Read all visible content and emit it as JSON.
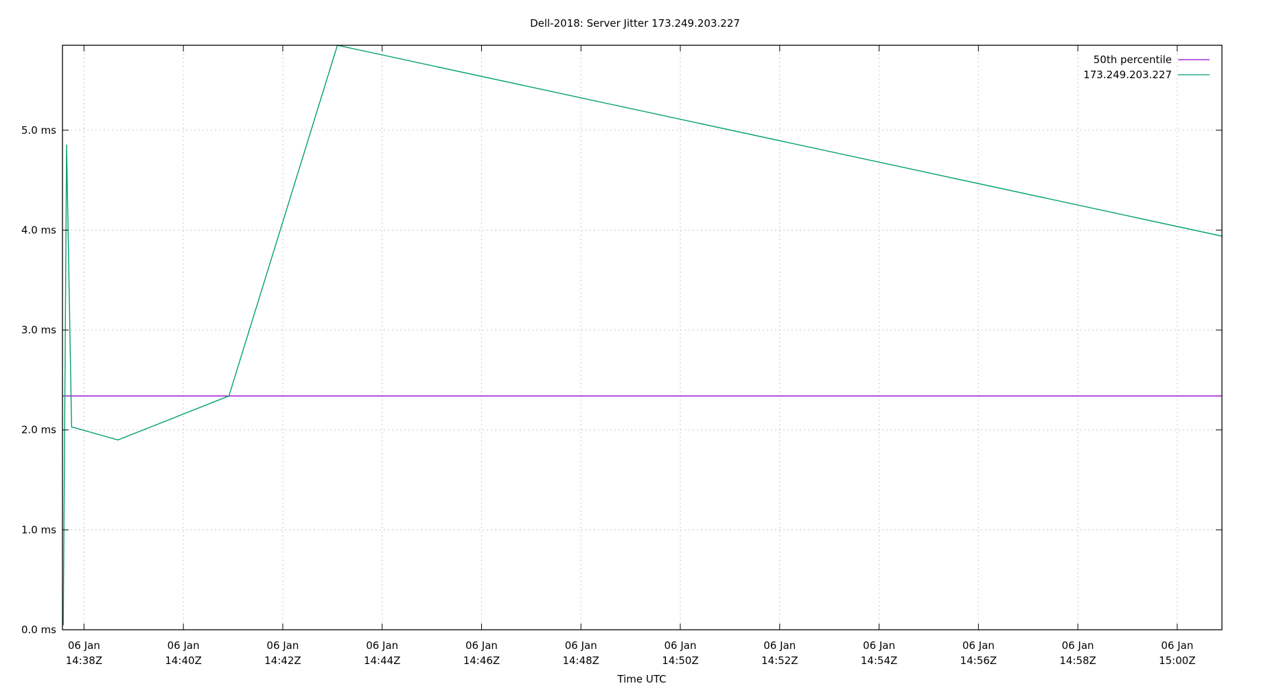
{
  "chart_data": {
    "type": "line",
    "title": "Dell-2018: Server Jitter 173.249.203.227",
    "xlabel": "Time UTC",
    "ylabel": "",
    "xlim": [
      "14:37:34",
      "15:00:54"
    ],
    "ylim": [
      0,
      5.85
    ],
    "grid": true,
    "legend_position": "top-right",
    "x_ticks": [
      {
        "time": "14:38",
        "line1": "06 Jan",
        "line2": "14:38Z"
      },
      {
        "time": "14:40",
        "line1": "06 Jan",
        "line2": "14:40Z"
      },
      {
        "time": "14:42",
        "line1": "06 Jan",
        "line2": "14:42Z"
      },
      {
        "time": "14:44",
        "line1": "06 Jan",
        "line2": "14:44Z"
      },
      {
        "time": "14:46",
        "line1": "06 Jan",
        "line2": "14:46Z"
      },
      {
        "time": "14:48",
        "line1": "06 Jan",
        "line2": "14:48Z"
      },
      {
        "time": "14:50",
        "line1": "06 Jan",
        "line2": "14:50Z"
      },
      {
        "time": "14:52",
        "line1": "06 Jan",
        "line2": "14:52Z"
      },
      {
        "time": "14:54",
        "line1": "06 Jan",
        "line2": "14:54Z"
      },
      {
        "time": "14:56",
        "line1": "06 Jan",
        "line2": "14:56Z"
      },
      {
        "time": "14:58",
        "line1": "06 Jan",
        "line2": "14:58Z"
      },
      {
        "time": "15:00",
        "line1": "06 Jan",
        "line2": "15:00Z"
      }
    ],
    "y_ticks": [
      {
        "value": 0,
        "label": "0.0 ms"
      },
      {
        "value": 1,
        "label": "1.0 ms"
      },
      {
        "value": 2,
        "label": "2.0 ms"
      },
      {
        "value": 3,
        "label": "3.0 ms"
      },
      {
        "value": 4,
        "label": "4.0 ms"
      },
      {
        "value": 5,
        "label": "5.0 ms"
      }
    ],
    "series": [
      {
        "name": "50th percentile",
        "color": "#9400d3",
        "kind": "hline",
        "value": 2.34
      },
      {
        "name": "173.249.203.227",
        "color": "#009e73",
        "kind": "line",
        "points": [
          {
            "x": "14:37:35",
            "y": 0.05
          },
          {
            "x": "14:37:39",
            "y": 4.85
          },
          {
            "x": "14:37:45",
            "y": 2.03
          },
          {
            "x": "14:38:41",
            "y": 1.9
          },
          {
            "x": "14:40:55",
            "y": 2.34
          },
          {
            "x": "14:43:06",
            "y": 5.85
          },
          {
            "x": "15:00:54",
            "y": 3.94
          }
        ]
      }
    ]
  }
}
